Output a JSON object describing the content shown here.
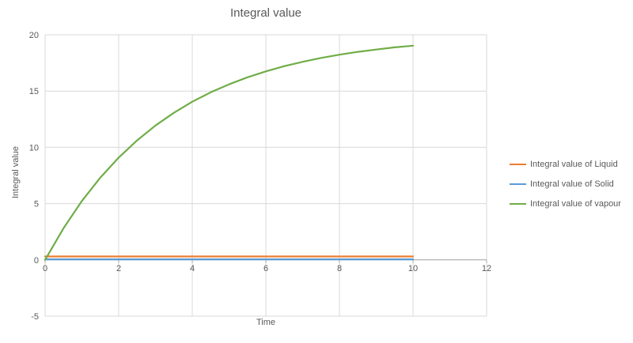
{
  "chart_data": {
    "type": "line",
    "title": "Integral value",
    "xlabel": "Time",
    "ylabel": "Integral value",
    "xlim": [
      0,
      12
    ],
    "ylim": [
      -5,
      20
    ],
    "xticks": [
      0,
      2,
      4,
      6,
      8,
      10,
      12
    ],
    "yticks": [
      -5,
      0,
      5,
      10,
      15,
      20
    ],
    "grid": true,
    "legend_position": "right",
    "colors": {
      "gridline": "#d9d9d9",
      "axis_line": "#a6a6a6",
      "text": "#595959"
    },
    "x": [
      0,
      0.5,
      1,
      1.5,
      2,
      2.5,
      3,
      3.5,
      4,
      4.5,
      5,
      5.5,
      6,
      6.5,
      7,
      7.5,
      8,
      8.5,
      9,
      9.5,
      10
    ],
    "series": [
      {
        "name": "Integral value of Liquid",
        "color": "#ED7D31",
        "values": [
          0.3,
          0.3,
          0.3,
          0.3,
          0.3,
          0.3,
          0.3,
          0.3,
          0.3,
          0.3,
          0.3,
          0.3,
          0.3,
          0.3,
          0.3,
          0.3,
          0.3,
          0.3,
          0.3,
          0.3,
          0.3
        ]
      },
      {
        "name": "Integral value of Solid",
        "color": "#5B9BD5",
        "values": [
          0.05,
          0.05,
          0.05,
          0.05,
          0.05,
          0.05,
          0.05,
          0.05,
          0.05,
          0.05,
          0.05,
          0.05,
          0.05,
          0.05,
          0.05,
          0.05,
          0.05,
          0.05,
          0.05,
          0.05,
          0.05
        ]
      },
      {
        "name": "Integral value of vapour",
        "color": "#70AD47",
        "values": [
          0,
          2.81,
          5.23,
          7.31,
          9.09,
          10.62,
          11.94,
          13.07,
          14.05,
          14.89,
          15.6,
          16.22,
          16.75,
          17.21,
          17.6,
          17.94,
          18.23,
          18.48,
          18.69,
          18.88,
          19.03
        ]
      }
    ]
  }
}
